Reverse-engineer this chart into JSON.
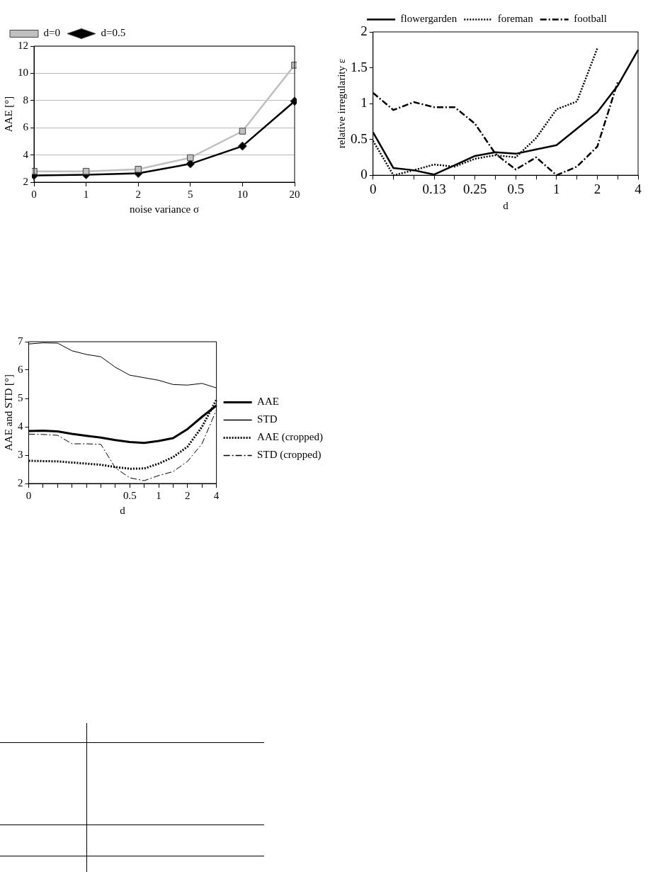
{
  "chart_data": [
    {
      "type": "line",
      "xlabel": "noise variance σ",
      "ylabel": "AAE [°]",
      "categories": [
        "0",
        "1",
        "2",
        "5",
        "10",
        "20"
      ],
      "ylim": [
        2,
        12
      ],
      "yticks": [
        2,
        4,
        6,
        8,
        10,
        12
      ],
      "grid": "y",
      "legend": "top left",
      "series": [
        {
          "name": "d=0",
          "color": "#c0c0c0",
          "marker": "square",
          "values": [
            2.8,
            2.8,
            2.95,
            3.8,
            5.75,
            10.6
          ]
        },
        {
          "name": "d=0.5",
          "color": "#000000",
          "marker": "diamond",
          "values": [
            2.5,
            2.55,
            2.65,
            3.35,
            4.65,
            7.95
          ]
        }
      ]
    },
    {
      "type": "line",
      "xlabel": "d",
      "ylabel": "relative irregularity ε",
      "categories": [
        "0",
        null,
        null,
        "0.13",
        null,
        "0.25",
        null,
        "0.5",
        null,
        "1",
        null,
        "2",
        null,
        "4"
      ],
      "ylim": [
        0,
        2
      ],
      "yticks": [
        0,
        0.5,
        1,
        1.5,
        2
      ],
      "grid": false,
      "legend": "top",
      "marker": "none",
      "series": [
        {
          "name": "flowergarden",
          "color": "#000000",
          "line_style": "solid",
          "values": [
            0.6,
            0.1,
            0.07,
            0.01,
            0.14,
            0.27,
            0.32,
            0.3,
            0.36,
            0.42,
            0.65,
            0.88,
            1.25,
            1.75
          ]
        },
        {
          "name": "foreman",
          "color": "#000000",
          "line_style": "dotted",
          "values": [
            0.48,
            0,
            0.07,
            0.15,
            0.12,
            0.23,
            0.28,
            0.25,
            0.52,
            0.92,
            1.03,
            1.77,
            null,
            null
          ]
        },
        {
          "name": "football",
          "color": "#000000",
          "line_style": "dashed",
          "values": [
            1.15,
            0.91,
            1.02,
            0.95,
            0.95,
            0.72,
            0.3,
            0.08,
            0.25,
            0,
            0.12,
            0.4,
            1.3,
            null
          ]
        }
      ]
    },
    {
      "type": "line",
      "xlabel": "d",
      "ylabel": "AAE and STD [°]",
      "categories": [
        "0",
        null,
        null,
        null,
        null,
        null,
        null,
        "0.5",
        null,
        "1",
        null,
        "2",
        null,
        "4"
      ],
      "ylim": [
        2,
        7
      ],
      "yticks": [
        2,
        3,
        4,
        5,
        6,
        7
      ],
      "grid": false,
      "legend": "right",
      "marker": "none",
      "series": [
        {
          "name": "AAE",
          "color": "#000000",
          "line_style": "solid",
          "values": [
            3.85,
            3.86,
            3.84,
            3.75,
            3.68,
            3.62,
            3.53,
            3.46,
            3.43,
            3.5,
            3.6,
            3.92,
            4.35,
            4.75
          ]
        },
        {
          "name": "STD",
          "color": "#000000",
          "line_style": "solid",
          "values": [
            6.92,
            6.96,
            6.95,
            6.68,
            6.55,
            6.47,
            6.1,
            5.82,
            5.73,
            5.64,
            5.49,
            5.47,
            5.53,
            5.37
          ]
        },
        {
          "name": "AAE (cropped)",
          "color": "#000000",
          "line_style": "dotted",
          "values": [
            2.8,
            2.79,
            2.78,
            2.74,
            2.7,
            2.66,
            2.58,
            2.52,
            2.53,
            2.7,
            2.93,
            3.3,
            4,
            4.95
          ]
        },
        {
          "name": "STD (cropped)",
          "color": "#000000",
          "line_style": "dashed",
          "values": [
            3.74,
            3.73,
            3.7,
            3.4,
            3.4,
            3.38,
            2.55,
            2.2,
            2.1,
            2.28,
            2.42,
            2.78,
            3.4,
            4.6
          ]
        }
      ]
    }
  ]
}
